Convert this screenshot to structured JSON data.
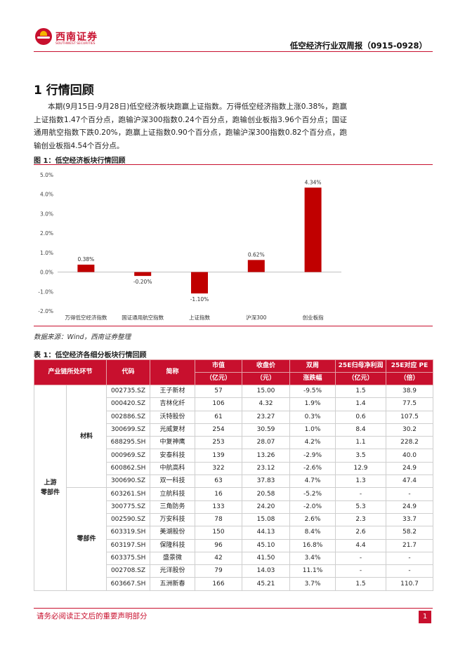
{
  "header": {
    "logo_cn": "西南证券",
    "logo_en": "SOUTHWEST SECURITIES",
    "report_title": "低空经济行业双周报（0915-0928）"
  },
  "section": {
    "title": "1 行情回顾",
    "paragraph": "本期(9月15日-9月28日)低空经济板块跑赢上证指数。万得低空经济指数上涨0.38%，跑赢上证指数1.47个百分点，跑输沪深300指数0.24个百分点，跑输创业板指3.96个百分点；国证通用航空指数下跌0.20%，跑赢上证指数0.90个百分点，跑输沪深300指数0.82个百分点，跑输创业板指4.54个百分点。"
  },
  "figure": {
    "title": "图 1：低空经济板块行情回顾",
    "source": "数据来源：Wind，西南证券整理"
  },
  "chart_data": {
    "type": "bar",
    "categories": [
      "万得低空经济指数",
      "国证通用航空指数",
      "上证指数",
      "沪深300",
      "创业板指"
    ],
    "values": [
      0.38,
      -0.2,
      -1.1,
      0.62,
      4.34
    ],
    "value_labels": [
      "0.38%",
      "-0.20%",
      "-1.10%",
      "0.62%",
      "4.34%"
    ],
    "yticks": [
      "5.0%",
      "4.0%",
      "3.0%",
      "2.0%",
      "1.0%",
      "0.0%",
      "-1.0%",
      "-2.0%"
    ],
    "ylim": [
      -2,
      5
    ],
    "bar_color": "#c00000",
    "grid": false
  },
  "table": {
    "title": "表 1：低空经济各细分板块行情回顾",
    "headers": {
      "chain": "产业链所处环节",
      "code": "代码",
      "name": "简称",
      "mktcap_1": "市值",
      "mktcap_2": "（亿元）",
      "close_1": "收盘价",
      "close_2": "（元）",
      "chg_1": "双周",
      "chg_2": "涨跌幅",
      "profit_1": "25E归母净利润",
      "profit_2": "（亿元）",
      "pe_1": "25E对应 PE",
      "pe_2": "（倍）"
    },
    "group_upstream": "上游\n零部件",
    "group_material": "材料",
    "group_component": "零部件",
    "rows": [
      {
        "code": "002735.SZ",
        "name": "王子新材",
        "cap": "57",
        "close": "15.00",
        "chg": "-9.5%",
        "profit": "1.5",
        "pe": "38.9"
      },
      {
        "code": "000420.SZ",
        "name": "吉林化纤",
        "cap": "106",
        "close": "4.32",
        "chg": "1.9%",
        "profit": "1.4",
        "pe": "77.5"
      },
      {
        "code": "002886.SZ",
        "name": "沃特股份",
        "cap": "61",
        "close": "23.27",
        "chg": "0.3%",
        "profit": "0.6",
        "pe": "107.5"
      },
      {
        "code": "300699.SZ",
        "name": "光威复材",
        "cap": "254",
        "close": "30.59",
        "chg": "1.0%",
        "profit": "8.4",
        "pe": "30.2"
      },
      {
        "code": "688295.SH",
        "name": "中复神鹰",
        "cap": "253",
        "close": "28.07",
        "chg": "4.2%",
        "profit": "1.1",
        "pe": "228.2"
      },
      {
        "code": "000969.SZ",
        "name": "安泰科技",
        "cap": "139",
        "close": "13.26",
        "chg": "-2.9%",
        "profit": "3.5",
        "pe": "40.0"
      },
      {
        "code": "600862.SH",
        "name": "中航高科",
        "cap": "322",
        "close": "23.12",
        "chg": "-2.6%",
        "profit": "12.9",
        "pe": "24.9"
      },
      {
        "code": "300690.SZ",
        "name": "双一科技",
        "cap": "63",
        "close": "37.83",
        "chg": "4.7%",
        "profit": "1.3",
        "pe": "47.4"
      },
      {
        "code": "603261.SH",
        "name": "立航科技",
        "cap": "16",
        "close": "20.58",
        "chg": "-5.2%",
        "profit": "-",
        "pe": "-"
      },
      {
        "code": "300775.SZ",
        "name": "三角防务",
        "cap": "133",
        "close": "24.20",
        "chg": "-2.0%",
        "profit": "5.3",
        "pe": "24.9"
      },
      {
        "code": "002590.SZ",
        "name": "万安科技",
        "cap": "78",
        "close": "15.08",
        "chg": "2.6%",
        "profit": "2.3",
        "pe": "33.7"
      },
      {
        "code": "603319.SH",
        "name": "美湖股份",
        "cap": "150",
        "close": "44.13",
        "chg": "8.4%",
        "profit": "2.6",
        "pe": "58.2"
      },
      {
        "code": "603197.SH",
        "name": "保隆科技",
        "cap": "96",
        "close": "45.10",
        "chg": "16.8%",
        "profit": "4.4",
        "pe": "21.7"
      },
      {
        "code": "603375.SH",
        "name": "盛景微",
        "cap": "42",
        "close": "41.50",
        "chg": "3.4%",
        "profit": "-",
        "pe": "-"
      },
      {
        "code": "002708.SZ",
        "name": "光洋股份",
        "cap": "79",
        "close": "14.03",
        "chg": "11.1%",
        "profit": "-",
        "pe": "-"
      },
      {
        "code": "603667.SH",
        "name": "五洲新春",
        "cap": "166",
        "close": "45.21",
        "chg": "3.7%",
        "profit": "1.5",
        "pe": "110.7"
      }
    ]
  },
  "footer": {
    "disclaimer": "请务必阅读正文后的重要声明部分",
    "page_number": "1"
  }
}
